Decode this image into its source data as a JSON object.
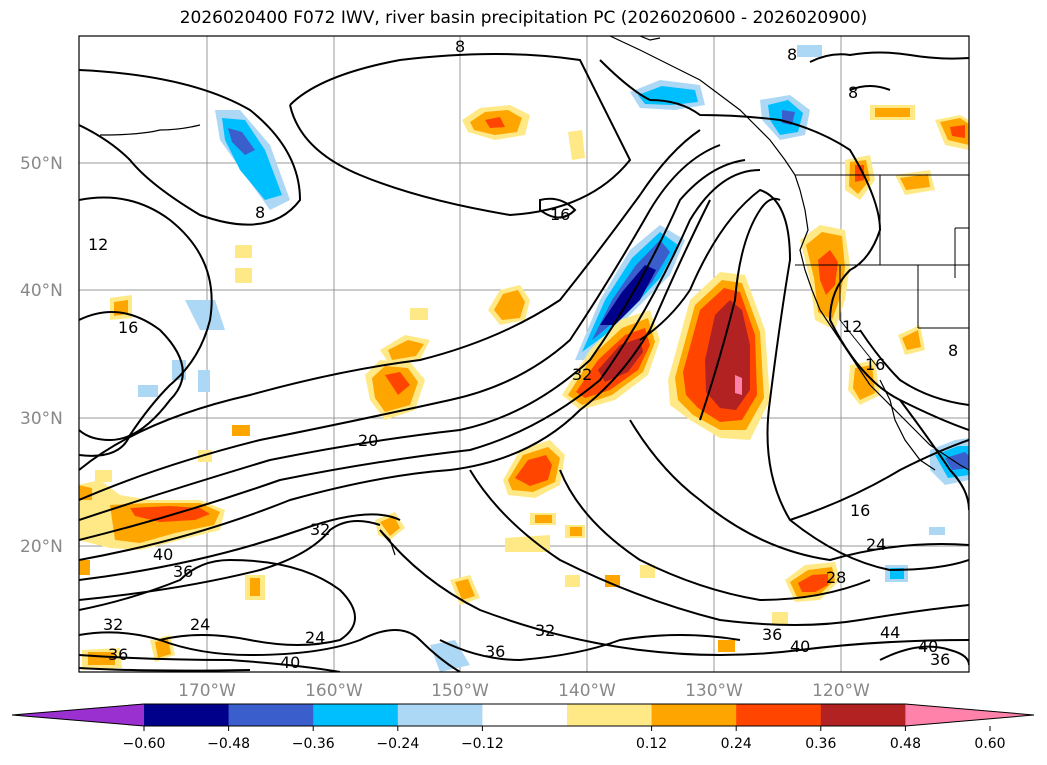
{
  "title": "2026020400 F072 IWV, river basin precipitation PC (2026020600 - 2026020900)",
  "map": {
    "lat_labels": [
      "50°N",
      "40°N",
      "30°N",
      "20°N"
    ],
    "lon_labels": [
      "170°W",
      "160°W",
      "150°W",
      "140°W",
      "130°W",
      "120°W"
    ],
    "contour_labels": [
      "8",
      "8",
      "8",
      "8",
      "12",
      "16",
      "16",
      "12",
      "16",
      "20",
      "32",
      "32",
      "40",
      "36",
      "24",
      "24",
      "32",
      "36",
      "32",
      "40",
      "36",
      "16",
      "24",
      "28",
      "36",
      "40",
      "44",
      "40",
      "36",
      "8"
    ]
  },
  "colorbar": {
    "ticks": [
      "−0.60",
      "−0.48",
      "−0.36",
      "−0.24",
      "−0.12",
      "0.12",
      "0.24",
      "0.36",
      "0.48",
      "0.60"
    ],
    "colors": [
      "#9b30d0",
      "#00008b",
      "#3a5fcd",
      "#00bfff",
      "#add8f5",
      "#ffffff",
      "#ffe987",
      "#ffa500",
      "#ff4500",
      "#b22222",
      "#ff82ab"
    ]
  }
}
